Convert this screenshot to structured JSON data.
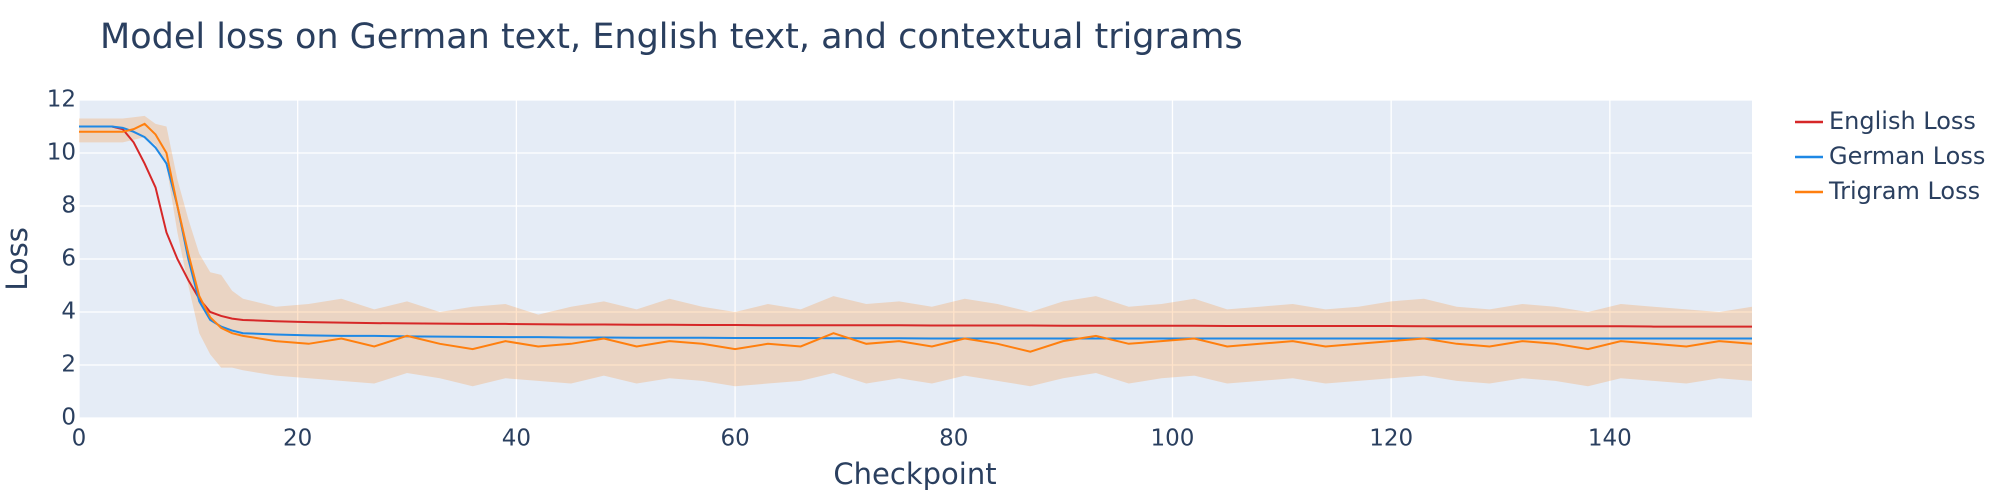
{
  "chart_data": {
    "type": "line",
    "title": "Model loss on German text, English text, and contextual trigrams",
    "x_label": "Checkpoint",
    "y_label": "Loss",
    "xlim": [
      0,
      153
    ],
    "ylim": [
      0,
      12
    ],
    "xticks": [
      0,
      20,
      40,
      60,
      80,
      100,
      120,
      140
    ],
    "yticks": [
      0,
      2,
      4,
      6,
      8,
      10,
      12
    ],
    "grid": true,
    "legend": "right",
    "x": [
      0,
      1,
      2,
      3,
      4,
      5,
      6,
      7,
      8,
      9,
      10,
      11,
      12,
      13,
      14,
      15,
      18,
      21,
      24,
      27,
      30,
      33,
      36,
      39,
      42,
      45,
      48,
      51,
      54,
      57,
      60,
      63,
      66,
      69,
      72,
      75,
      78,
      81,
      84,
      87,
      90,
      93,
      96,
      99,
      102,
      105,
      108,
      111,
      114,
      117,
      120,
      123,
      126,
      129,
      132,
      135,
      138,
      141,
      144,
      147,
      150,
      153
    ],
    "series": [
      {
        "name": "English Loss",
        "color": "#d62728",
        "values": [
          11,
          11,
          11,
          11,
          10.9,
          10.4,
          9.6,
          8.7,
          7.0,
          6.0,
          5.2,
          4.5,
          4.0,
          3.85,
          3.75,
          3.7,
          3.65,
          3.62,
          3.6,
          3.58,
          3.57,
          3.56,
          3.55,
          3.55,
          3.54,
          3.53,
          3.53,
          3.52,
          3.52,
          3.51,
          3.51,
          3.5,
          3.5,
          3.5,
          3.5,
          3.5,
          3.49,
          3.49,
          3.49,
          3.49,
          3.48,
          3.48,
          3.48,
          3.48,
          3.48,
          3.47,
          3.47,
          3.47,
          3.47,
          3.47,
          3.47,
          3.46,
          3.46,
          3.46,
          3.46,
          3.46,
          3.46,
          3.46,
          3.45,
          3.45,
          3.45,
          3.45
        ]
      },
      {
        "name": "German Loss",
        "color": "#1e88e5",
        "values": [
          11,
          11,
          11,
          11,
          10.95,
          10.8,
          10.6,
          10.2,
          9.6,
          8.0,
          6.0,
          4.4,
          3.7,
          3.45,
          3.3,
          3.2,
          3.15,
          3.12,
          3.1,
          3.1,
          3.08,
          3.07,
          3.06,
          3.05,
          3.05,
          3.04,
          3.04,
          3.03,
          3.03,
          3.03,
          3.02,
          3.02,
          3.02,
          3.01,
          3.01,
          3.01,
          3.0,
          3.0,
          3.0,
          3.0,
          3.0,
          3.0,
          3.0,
          3.0,
          3.0,
          3.0,
          3.0,
          3.0,
          3.0,
          3.0,
          3.0,
          3.0,
          3.0,
          3.0,
          3.0,
          3.0,
          3.0,
          3.0,
          3.0,
          3.0,
          3.0,
          3.0
        ]
      },
      {
        "name": "Trigram Loss",
        "color": "#ff7f0e",
        "band_color": "rgba(255,127,14,0.22)",
        "values": [
          10.8,
          10.8,
          10.8,
          10.8,
          10.8,
          10.9,
          11.1,
          10.7,
          10.0,
          8.0,
          6.2,
          4.6,
          3.8,
          3.4,
          3.2,
          3.1,
          2.9,
          2.8,
          3.0,
          2.7,
          3.1,
          2.8,
          2.6,
          2.9,
          2.7,
          2.8,
          3.0,
          2.7,
          2.9,
          2.8,
          2.6,
          2.8,
          2.7,
          3.2,
          2.8,
          2.9,
          2.7,
          3.0,
          2.8,
          2.5,
          2.9,
          3.1,
          2.8,
          2.9,
          3.0,
          2.7,
          2.8,
          2.9,
          2.7,
          2.8,
          2.9,
          3.0,
          2.8,
          2.7,
          2.9,
          2.8,
          2.6,
          2.9,
          2.8,
          2.7,
          2.9,
          2.8
        ],
        "upper": [
          11.3,
          11.3,
          11.3,
          11.3,
          11.3,
          11.35,
          11.4,
          11.1,
          11.0,
          9.0,
          7.5,
          6.2,
          5.5,
          5.4,
          4.8,
          4.5,
          4.2,
          4.3,
          4.5,
          4.1,
          4.4,
          4.0,
          4.2,
          4.3,
          3.9,
          4.2,
          4.4,
          4.1,
          4.5,
          4.2,
          4.0,
          4.3,
          4.1,
          4.6,
          4.3,
          4.4,
          4.2,
          4.5,
          4.3,
          4.0,
          4.4,
          4.6,
          4.2,
          4.3,
          4.5,
          4.1,
          4.2,
          4.3,
          4.1,
          4.2,
          4.4,
          4.5,
          4.2,
          4.1,
          4.3,
          4.2,
          4.0,
          4.3,
          4.2,
          4.1,
          4.0,
          4.2
        ],
        "lower": [
          10.4,
          10.4,
          10.4,
          10.4,
          10.4,
          10.5,
          10.6,
          10.3,
          9.5,
          7.0,
          5.0,
          3.2,
          2.4,
          1.9,
          1.9,
          1.8,
          1.6,
          1.5,
          1.4,
          1.3,
          1.7,
          1.5,
          1.2,
          1.5,
          1.4,
          1.3,
          1.6,
          1.3,
          1.5,
          1.4,
          1.2,
          1.3,
          1.4,
          1.7,
          1.3,
          1.5,
          1.3,
          1.6,
          1.4,
          1.2,
          1.5,
          1.7,
          1.3,
          1.5,
          1.6,
          1.3,
          1.4,
          1.5,
          1.3,
          1.4,
          1.5,
          1.6,
          1.4,
          1.3,
          1.5,
          1.4,
          1.2,
          1.5,
          1.4,
          1.3,
          1.5,
          1.4
        ]
      }
    ]
  }
}
